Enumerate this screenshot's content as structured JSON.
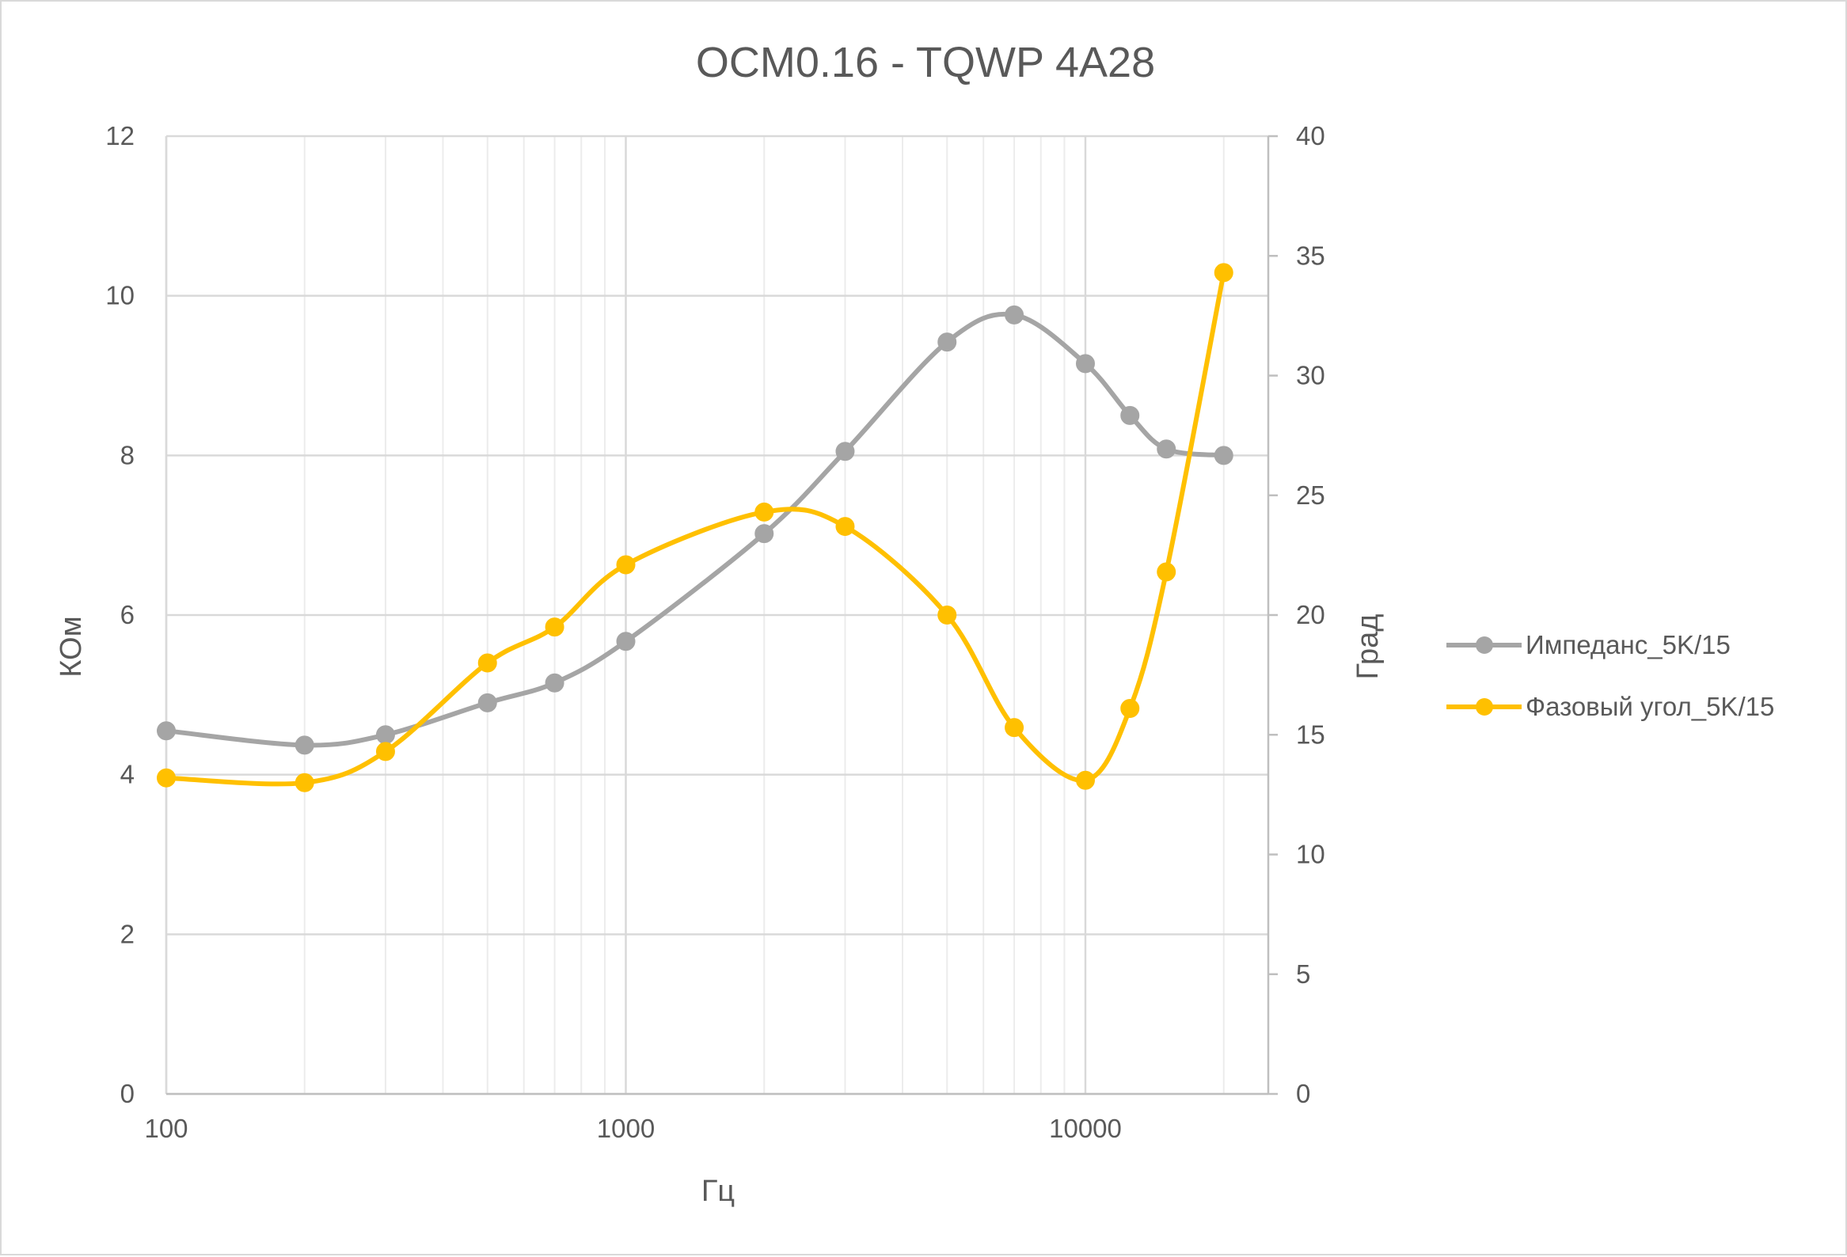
{
  "chart_data": {
    "type": "line",
    "title": "OCM0.16 - TQWP 4A28",
    "xlabel": "Гц",
    "ylabel": "КОм",
    "y2label": "Град",
    "xscale": "log",
    "xlim": [
      100,
      25000
    ],
    "ylim": [
      0,
      12
    ],
    "y2lim": [
      0,
      40
    ],
    "x_ticks": [
      100,
      1000,
      10000
    ],
    "x_tick_labels": [
      "100",
      "1000",
      "10000"
    ],
    "y_ticks": [
      0,
      2,
      4,
      6,
      8,
      10,
      12
    ],
    "y_tick_labels": [
      "0",
      "2",
      "4",
      "6",
      "8",
      "10",
      "12"
    ],
    "y2_ticks": [
      0,
      5,
      10,
      15,
      20,
      25,
      30,
      35,
      40
    ],
    "y2_tick_labels": [
      "0",
      "5",
      "10",
      "15",
      "20",
      "25",
      "30",
      "35",
      "40"
    ],
    "grid": true,
    "legend_position": "right",
    "x": [
      100,
      200,
      300,
      500,
      700,
      1000,
      2000,
      3000,
      5000,
      7000,
      10000,
      12500,
      15000,
      20000
    ],
    "series": [
      {
        "name": "Импеданс_5K/15",
        "axis": "left",
        "color": "#a5a5a5",
        "values": [
          4.55,
          4.37,
          4.5,
          4.9,
          5.15,
          5.67,
          7.02,
          8.05,
          9.42,
          9.76,
          9.15,
          8.5,
          8.08,
          8.0
        ]
      },
      {
        "name": "Фазовый угол_5K/15",
        "axis": "right",
        "color": "#ffc000",
        "values": [
          13.2,
          13.0,
          14.3,
          18.0,
          19.5,
          22.1,
          24.3,
          23.7,
          20.0,
          15.3,
          13.1,
          16.1,
          21.8,
          34.3
        ]
      }
    ]
  }
}
